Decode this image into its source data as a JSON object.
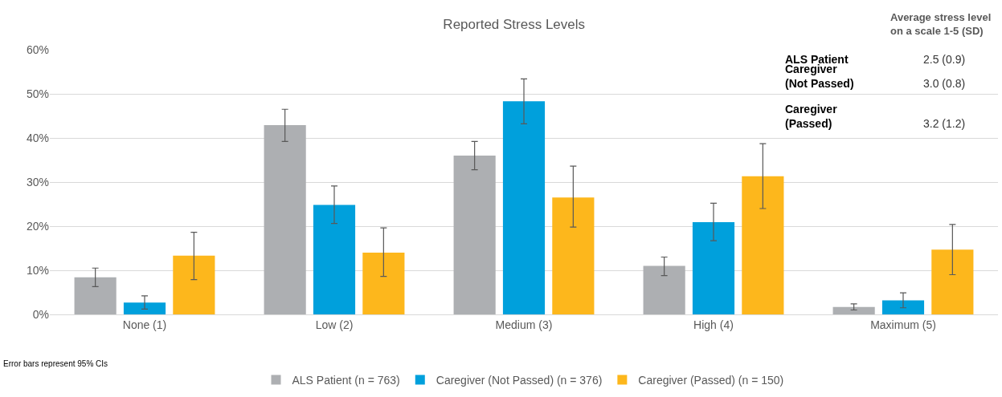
{
  "chart_data": {
    "type": "bar",
    "title": "Reported Stress Levels",
    "categories": [
      "None (1)",
      "Low (2)",
      "Medium (3)",
      "High (4)",
      "Maximum (5)"
    ],
    "series": [
      {
        "name": "ALS Patient (n = 763)",
        "color": "#adafb2",
        "values": [
          8.4,
          42.9,
          36.0,
          11.0,
          1.7
        ],
        "errors": [
          [
            6.3,
            10.5
          ],
          [
            39.2,
            46.5
          ],
          [
            32.8,
            39.2
          ],
          [
            8.8,
            13.0
          ],
          [
            1.0,
            2.4
          ]
        ]
      },
      {
        "name": "Caregiver (Not Passed) (n = 376)",
        "color": "#00a0dc",
        "values": [
          2.7,
          24.8,
          48.3,
          20.9,
          3.2
        ],
        "errors": [
          [
            1.2,
            4.2
          ],
          [
            20.6,
            29.1
          ],
          [
            43.2,
            53.4
          ],
          [
            16.7,
            25.2
          ],
          [
            1.5,
            4.9
          ]
        ]
      },
      {
        "name": "Caregiver (Passed) (n = 150)",
        "color": "#fdb71c",
        "values": [
          13.3,
          14.0,
          26.5,
          31.3,
          14.7
        ],
        "errors": [
          [
            7.9,
            18.6
          ],
          [
            8.6,
            19.6
          ],
          [
            19.8,
            33.6
          ],
          [
            24.0,
            38.7
          ],
          [
            9.0,
            20.4
          ]
        ]
      }
    ],
    "ylim": [
      0,
      60
    ],
    "yticks": [
      {
        "value": 0,
        "label": "0%"
      },
      {
        "value": 10,
        "label": "10%"
      },
      {
        "value": 20,
        "label": "20%"
      },
      {
        "value": 30,
        "label": "30%"
      },
      {
        "value": 40,
        "label": "40%"
      },
      {
        "value": 50,
        "label": "50%"
      },
      {
        "value": 60,
        "label": "60%"
      }
    ],
    "grid": "y",
    "legend": "bottom",
    "annotations": [
      "Error bars represent 95% CIs",
      "Average stress level on a scale 1-5 (SD)",
      "ALS Patient",
      "2.5 (0.9)",
      "Caregiver (Not Passed)",
      "3.0 (0.8)",
      "Caregiver (Passed)",
      "3.2 (1.2)"
    ]
  }
}
